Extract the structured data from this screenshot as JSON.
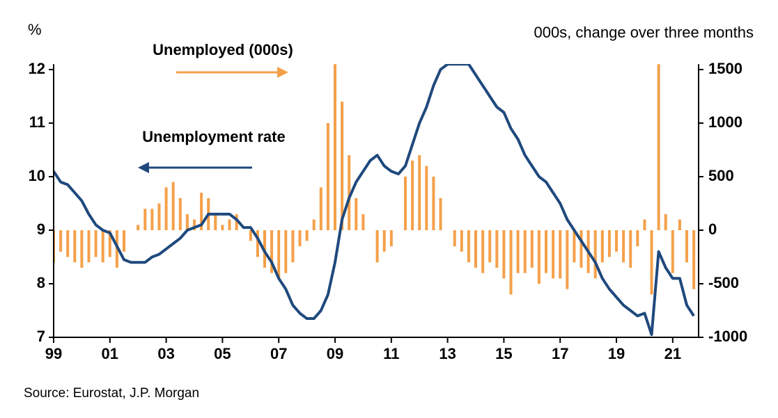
{
  "chart_data": {
    "type": "bar-line",
    "left_unit": "%",
    "right_unit": "000s, change over three months",
    "source": "Source: Eurostat, J.P. Morgan",
    "x": [
      1999,
      1999.25,
      1999.5,
      1999.75,
      2000,
      2000.25,
      2000.5,
      2000.75,
      2001,
      2001.25,
      2001.5,
      2001.75,
      2002,
      2002.25,
      2002.5,
      2002.75,
      2003,
      2003.25,
      2003.5,
      2003.75,
      2004,
      2004.25,
      2004.5,
      2004.75,
      2005,
      2005.25,
      2005.5,
      2005.75,
      2006,
      2006.25,
      2006.5,
      2006.75,
      2007,
      2007.25,
      2007.5,
      2007.75,
      2008,
      2008.25,
      2008.5,
      2008.75,
      2009,
      2009.25,
      2009.5,
      2009.75,
      2010,
      2010.25,
      2010.5,
      2010.75,
      2011,
      2011.25,
      2011.5,
      2011.75,
      2012,
      2012.25,
      2012.5,
      2012.75,
      2013,
      2013.25,
      2013.5,
      2013.75,
      2014,
      2014.25,
      2014.5,
      2014.75,
      2015,
      2015.25,
      2015.5,
      2015.75,
      2016,
      2016.25,
      2016.5,
      2016.75,
      2017,
      2017.25,
      2017.5,
      2017.75,
      2018,
      2018.25,
      2018.5,
      2018.75,
      2019,
      2019.25,
      2019.5,
      2019.75,
      2020,
      2020.25,
      2020.5,
      2020.75,
      2021,
      2021.25,
      2021.5,
      2021.75
    ],
    "series": [
      {
        "name": "Unemployed (000s)",
        "kind": "bar",
        "axis": "y2",
        "color": "#f4a04a",
        "values": [
          -300,
          -200,
          -250,
          -300,
          -350,
          -300,
          -250,
          -300,
          -250,
          -350,
          -200,
          0,
          50,
          200,
          200,
          250,
          400,
          450,
          300,
          150,
          100,
          350,
          300,
          150,
          50,
          100,
          150,
          0,
          -100,
          -250,
          -350,
          -400,
          -450,
          -400,
          -300,
          -150,
          -100,
          100,
          400,
          1000,
          1550,
          1200,
          700,
          300,
          150,
          0,
          -300,
          -200,
          -150,
          0,
          500,
          650,
          700,
          600,
          500,
          300,
          0,
          -150,
          -200,
          -300,
          -350,
          -400,
          -300,
          -350,
          -450,
          -600,
          -400,
          -400,
          -350,
          -500,
          -400,
          -450,
          -450,
          -550,
          -300,
          -350,
          -400,
          -450,
          -300,
          -250,
          -200,
          -300,
          -350,
          -150,
          100,
          -600,
          1550,
          150,
          -400,
          100,
          -300,
          -550
        ]
      },
      {
        "name": "Unemployment rate",
        "kind": "line",
        "axis": "y",
        "color": "#1f497d",
        "values": [
          10.1,
          9.9,
          9.85,
          9.7,
          9.55,
          9.3,
          9.1,
          9.0,
          8.95,
          8.7,
          8.45,
          8.4,
          8.4,
          8.4,
          8.5,
          8.55,
          8.65,
          8.75,
          8.85,
          9.0,
          9.05,
          9.1,
          9.3,
          9.3,
          9.3,
          9.3,
          9.2,
          9.05,
          9.05,
          8.85,
          8.6,
          8.4,
          8.1,
          7.9,
          7.6,
          7.45,
          7.35,
          7.35,
          7.5,
          7.8,
          8.4,
          9.2,
          9.6,
          9.9,
          10.1,
          10.3,
          10.4,
          10.2,
          10.1,
          10.05,
          10.2,
          10.6,
          11.0,
          11.3,
          11.7,
          12.0,
          12.1,
          12.1,
          12.1,
          12.1,
          11.9,
          11.7,
          11.5,
          11.3,
          11.2,
          10.9,
          10.7,
          10.4,
          10.2,
          10.0,
          9.9,
          9.7,
          9.5,
          9.2,
          9.0,
          8.8,
          8.6,
          8.4,
          8.1,
          7.9,
          7.75,
          7.6,
          7.5,
          7.4,
          7.45,
          7.05,
          8.6,
          8.3,
          8.1,
          8.1,
          7.6,
          7.4
        ]
      }
    ],
    "xlim": [
      1999,
      2021.92
    ],
    "xticks": [
      {
        "value": 1999,
        "label": "99"
      },
      {
        "value": 2001,
        "label": "01"
      },
      {
        "value": 2003,
        "label": "03"
      },
      {
        "value": 2005,
        "label": "05"
      },
      {
        "value": 2007,
        "label": "07"
      },
      {
        "value": 2009,
        "label": "09"
      },
      {
        "value": 2011,
        "label": "11"
      },
      {
        "value": 2013,
        "label": "13"
      },
      {
        "value": 2015,
        "label": "15"
      },
      {
        "value": 2017,
        "label": "17"
      },
      {
        "value": 2019,
        "label": "19"
      },
      {
        "value": 2021,
        "label": "21"
      }
    ],
    "ylim": [
      7,
      12.1
    ],
    "yticks": [
      7,
      8,
      9,
      10,
      11,
      12
    ],
    "y2lim": [
      -1000,
      1550
    ],
    "y2ticks": [
      -1000,
      -500,
      0,
      500,
      1000,
      1500
    ]
  }
}
